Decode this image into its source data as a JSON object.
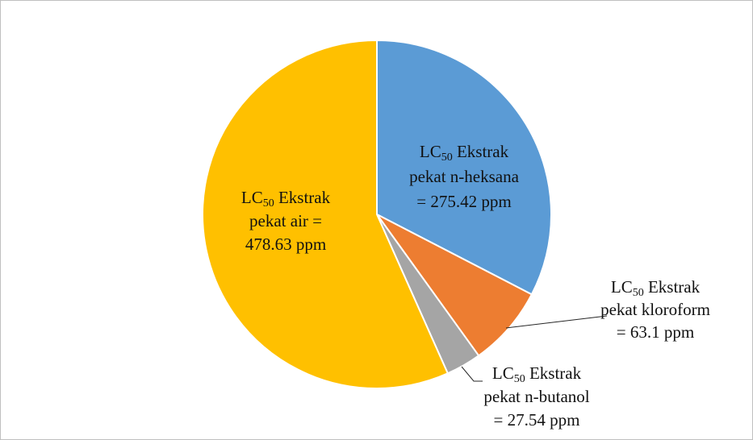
{
  "chart_data": {
    "type": "pie",
    "title": "",
    "slices": [
      {
        "name": "n-heksana",
        "value": 275.42,
        "color": "#5b9bd5",
        "label_lines": [
          "Ekstrak",
          "pekat n-heksana",
          "= 275.42 ppm"
        ]
      },
      {
        "name": "kloroform",
        "value": 63.1,
        "color": "#ed7d31",
        "label_lines": [
          "Ekstrak",
          "pekat kloroform",
          "= 63.1 ppm"
        ]
      },
      {
        "name": "n-butanol",
        "value": 27.54,
        "color": "#a5a5a5",
        "label_lines": [
          "Ekstrak",
          "pekat n-butanol",
          "= 27.54 ppm"
        ]
      },
      {
        "name": "air",
        "value": 478.63,
        "color": "#ffc000",
        "label_lines": [
          "Ekstrak",
          "pekat air =",
          "478.63 ppm"
        ]
      }
    ],
    "label_prefix": "LC",
    "label_subscript": "50",
    "start_angle_deg": 0,
    "direction": "clockwise",
    "legend": "none"
  }
}
